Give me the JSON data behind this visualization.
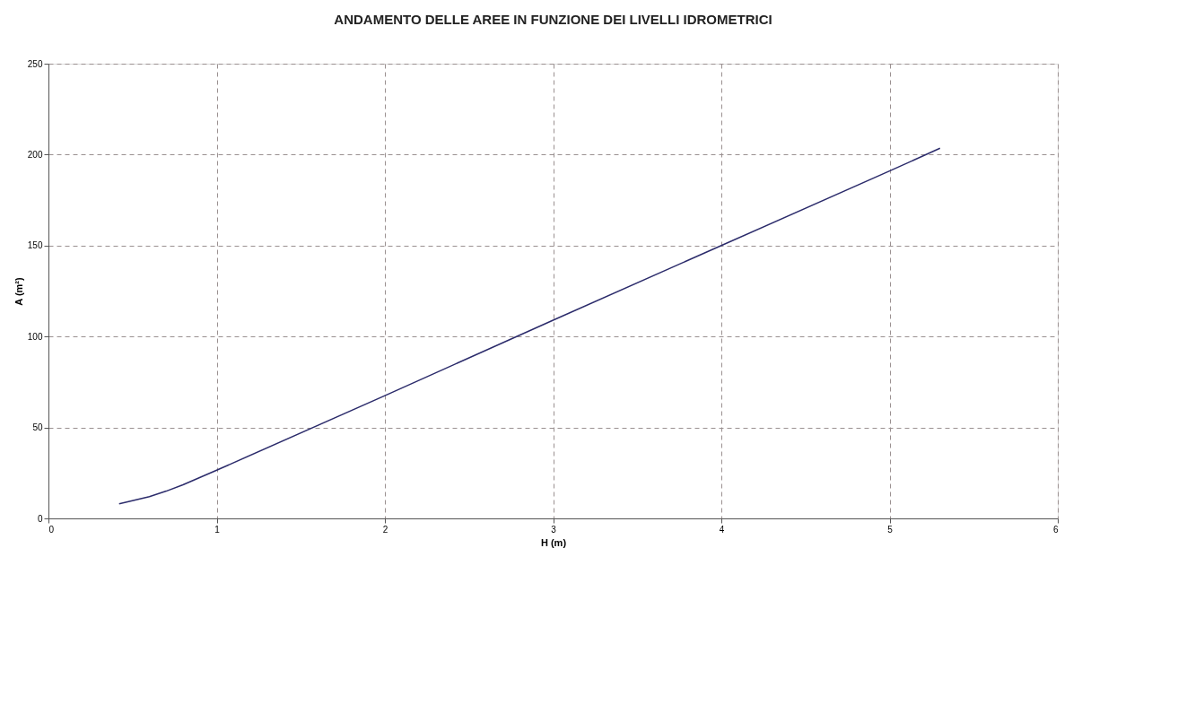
{
  "chart_data": {
    "type": "line",
    "title": "ANDAMENTO DELLE AREE IN FUNZIONE DEI LIVELLI IDROMETRICI",
    "xlabel": "H (m)",
    "ylabel": "A (m²)",
    "series": [
      {
        "color": "#2b2b6b",
        "x": [
          0.42,
          0.6,
          0.7,
          0.8,
          1,
          2,
          3,
          4,
          5,
          5.3
        ],
        "values": [
          8,
          12,
          15,
          18.5,
          26.5,
          67.5,
          109,
          150,
          191,
          203.5
        ]
      }
    ],
    "xlim": [
      0,
      6
    ],
    "xticks": [
      0,
      1,
      2,
      3,
      4,
      5,
      6
    ],
    "ylim": [
      0,
      250
    ],
    "yticks": [
      0,
      50,
      100,
      150,
      200,
      250
    ],
    "grid": true,
    "marker": "none",
    "line_style": "solid"
  }
}
